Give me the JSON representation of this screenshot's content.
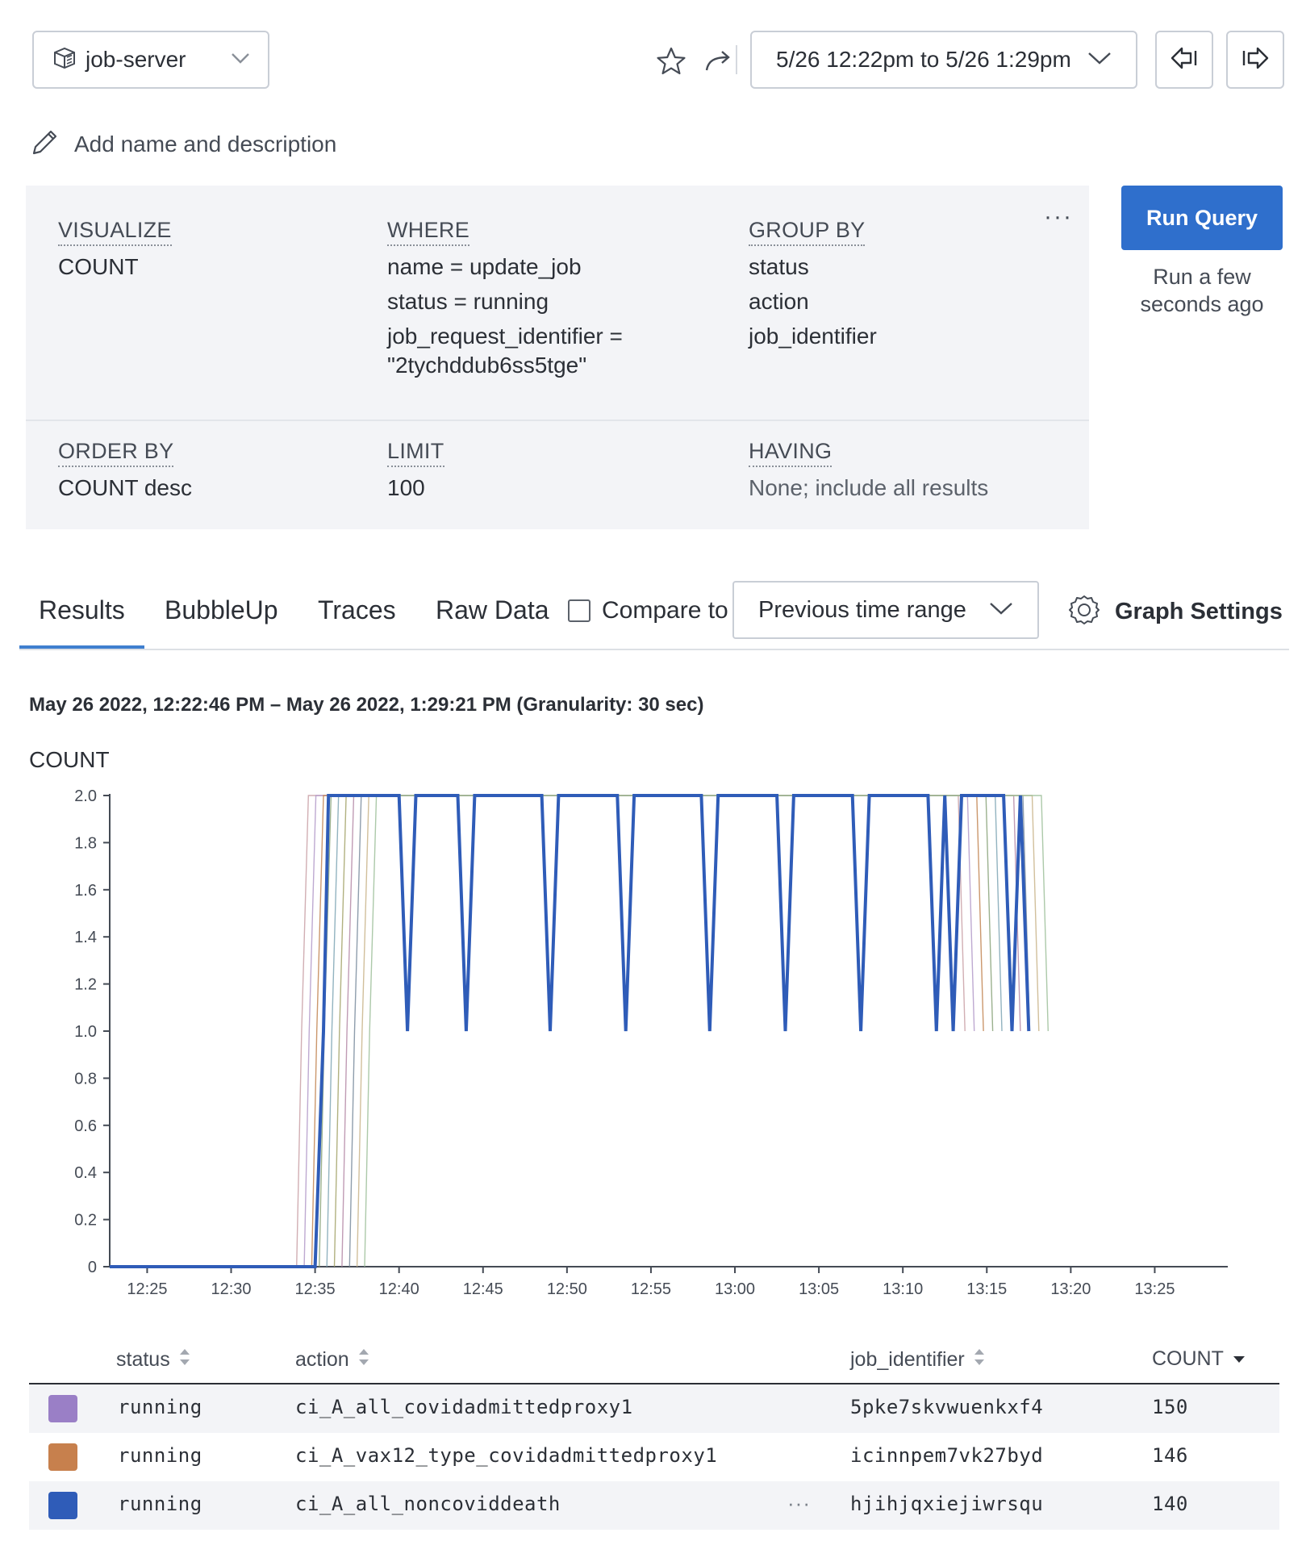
{
  "header": {
    "dataset": "job-server",
    "time_range": "5/26 12:22pm to 5/26 1:29pm",
    "icons": {
      "dataset": "dataset-icon",
      "dropdown": "chevron-down-icon",
      "favorite": "star-icon",
      "share": "share-arrow-icon",
      "back": "arrow-left-icon",
      "forward": "arrow-right-icon"
    }
  },
  "name_row": {
    "label": "Add name and description",
    "icon": "pencil-icon"
  },
  "query": {
    "visualize": {
      "heading": "VISUALIZE",
      "items": [
        "COUNT"
      ]
    },
    "where": {
      "heading": "WHERE",
      "items": [
        "name = update_job",
        "status = running",
        "job_request_identifier =",
        "\"2tychddub6ss5tge\""
      ]
    },
    "group_by": {
      "heading": "GROUP BY",
      "items": [
        "status",
        "action",
        "job_identifier"
      ]
    },
    "order_by": {
      "heading": "ORDER BY",
      "items": [
        "COUNT desc"
      ]
    },
    "limit": {
      "heading": "LIMIT",
      "items": [
        "100"
      ]
    },
    "having": {
      "heading": "HAVING",
      "items": [
        "None; include all results"
      ]
    },
    "more": "···"
  },
  "run": {
    "label": "Run Query",
    "note_line1": "Run a few",
    "note_line2": "seconds ago"
  },
  "tabs": [
    "Results",
    "BubbleUp",
    "Traces",
    "Raw Data"
  ],
  "compare": {
    "label": "Compare to",
    "checked": false,
    "selected": "Previous time range"
  },
  "graph_settings": {
    "label": "Graph Settings",
    "icon": "gear-icon"
  },
  "results": {
    "range_title": "May 26 2022, 12:22:46 PM – May 26 2022, 1:29:21 PM (Granularity: 30 sec)",
    "chart_label": "COUNT"
  },
  "chart_data": {
    "type": "line",
    "ylabel": "COUNT",
    "ylim": [
      0,
      2.0
    ],
    "y_ticks": [
      "0",
      "0.2",
      "0.4",
      "0.6",
      "0.8",
      "1.0",
      "1.2",
      "1.4",
      "1.6",
      "1.8",
      "2.0"
    ],
    "x_ticks": [
      "12:25",
      "12:30",
      "12:35",
      "12:40",
      "12:45",
      "12:50",
      "12:55",
      "13:00",
      "13:05",
      "13:10",
      "13:15",
      "13:20",
      "13:25"
    ],
    "xlim_minutes_after_12": [
      22.77,
      89.35
    ],
    "main_series": {
      "color": "#2f5cb8",
      "points": [
        [
          22.77,
          0
        ],
        [
          35.0,
          0
        ],
        [
          35.5,
          1.0
        ],
        [
          35.8,
          2.0
        ],
        [
          40.0,
          2.0
        ],
        [
          40.5,
          1.0
        ],
        [
          41.0,
          2.0
        ],
        [
          43.5,
          2.0
        ],
        [
          44.0,
          1.0
        ],
        [
          44.5,
          2.0
        ],
        [
          48.5,
          2.0
        ],
        [
          49.0,
          1.0
        ],
        [
          49.5,
          2.0
        ],
        [
          53.0,
          2.0
        ],
        [
          53.5,
          1.0
        ],
        [
          54.0,
          2.0
        ],
        [
          58.0,
          2.0
        ],
        [
          58.5,
          1.0
        ],
        [
          59.0,
          2.0
        ],
        [
          62.5,
          2.0
        ],
        [
          63.0,
          1.0
        ],
        [
          63.5,
          2.0
        ],
        [
          67.0,
          2.0
        ],
        [
          67.5,
          1.0
        ],
        [
          68.0,
          2.0
        ],
        [
          71.5,
          2.0
        ],
        [
          72.0,
          1.0
        ],
        [
          72.5,
          2.0
        ],
        [
          73.0,
          1.0
        ],
        [
          73.5,
          2.0
        ],
        [
          76.0,
          2.0
        ],
        [
          76.5,
          1.0
        ],
        [
          77.0,
          2.0
        ],
        [
          77.5,
          1.0
        ]
      ]
    },
    "thin_series_colors": [
      "#c9a0a6",
      "#b39ac9",
      "#c28552",
      "#8aa37a",
      "#7fa6b5",
      "#a3a36a",
      "#b58aa7",
      "#7a8c9e",
      "#c9b48a",
      "#9dbf9a"
    ]
  },
  "table": {
    "columns": [
      "status",
      "action",
      "job_identifier",
      "COUNT"
    ],
    "rows": [
      {
        "color": "#9a7fc6",
        "status": "running",
        "action": "ci_A_all_covidadmittedproxy1",
        "job_identifier": "5pke7skvwuenkxf4",
        "count": "150"
      },
      {
        "color": "#c7804d",
        "status": "running",
        "action": "ci_A_vax12_type_covidadmittedproxy1",
        "job_identifier": "icinnpem7vk27byd",
        "count": "146"
      },
      {
        "color": "#2f5cb8",
        "status": "running",
        "action": "ci_A_all_noncoviddeath",
        "job_identifier": "hjihjqxiejiwrsqu",
        "count": "140"
      }
    ],
    "row_menu": "···"
  }
}
